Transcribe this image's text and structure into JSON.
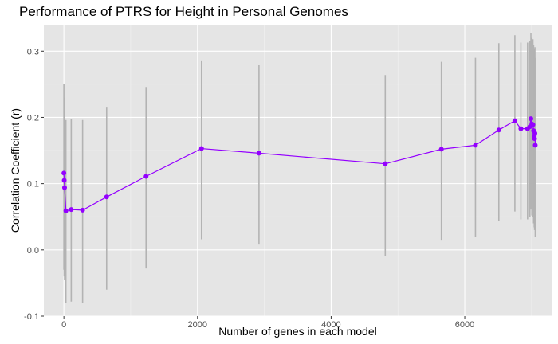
{
  "chart_data": {
    "type": "line",
    "title": "Performance of PTRS for Height in Personal Genomes",
    "xlabel": "Number of genes in each model",
    "ylabel": "Correlation Coefficient (r)",
    "xlim": [
      -300,
      7300
    ],
    "ylim": [
      -0.1,
      0.34
    ],
    "x_ticks": [
      0,
      2000,
      4000,
      6000
    ],
    "y_ticks": [
      -0.1,
      0.0,
      0.1,
      0.2,
      0.3
    ],
    "x_tick_labels": [
      "0",
      "2000",
      "4000",
      "6000"
    ],
    "y_tick_labels": [
      "-0.1",
      "0.0",
      "0.1",
      "0.2",
      "0.3"
    ],
    "grid": true,
    "background": "#e5e5e5",
    "line_color": "#9400ff",
    "point_color": "#9400ff",
    "errorbar_color": "#b3b3b3",
    "series": [
      {
        "points": [
          {
            "x": 0,
            "y": 0.116,
            "lo": -0.03,
            "hi": 0.25
          },
          {
            "x": 5,
            "y": 0.105,
            "lo": -0.04,
            "hi": 0.23
          },
          {
            "x": 10,
            "y": 0.094,
            "lo": -0.045,
            "hi": 0.21
          },
          {
            "x": 30,
            "y": 0.059,
            "lo": -0.08,
            "hi": 0.196
          },
          {
            "x": 110,
            "y": 0.061,
            "lo": -0.078,
            "hi": 0.198
          },
          {
            "x": 280,
            "y": 0.06,
            "lo": -0.08,
            "hi": 0.196
          },
          {
            "x": 640,
            "y": 0.08,
            "lo": -0.06,
            "hi": 0.216
          },
          {
            "x": 1230,
            "y": 0.111,
            "lo": -0.028,
            "hi": 0.246
          },
          {
            "x": 2060,
            "y": 0.153,
            "lo": 0.016,
            "hi": 0.286
          },
          {
            "x": 2920,
            "y": 0.146,
            "lo": 0.008,
            "hi": 0.279
          },
          {
            "x": 4810,
            "y": 0.13,
            "lo": -0.009,
            "hi": 0.264
          },
          {
            "x": 5650,
            "y": 0.152,
            "lo": 0.014,
            "hi": 0.284
          },
          {
            "x": 6160,
            "y": 0.158,
            "lo": 0.02,
            "hi": 0.29
          },
          {
            "x": 6510,
            "y": 0.181,
            "lo": 0.044,
            "hi": 0.312
          },
          {
            "x": 6750,
            "y": 0.195,
            "lo": 0.058,
            "hi": 0.324
          },
          {
            "x": 6840,
            "y": 0.183,
            "lo": 0.046,
            "hi": 0.313
          },
          {
            "x": 6940,
            "y": 0.183,
            "lo": 0.046,
            "hi": 0.313
          },
          {
            "x": 6975,
            "y": 0.186,
            "lo": 0.049,
            "hi": 0.316
          },
          {
            "x": 6990,
            "y": 0.198,
            "lo": 0.061,
            "hi": 0.327
          },
          {
            "x": 7005,
            "y": 0.19,
            "lo": 0.052,
            "hi": 0.32
          },
          {
            "x": 7020,
            "y": 0.189,
            "lo": 0.05,
            "hi": 0.318
          },
          {
            "x": 7030,
            "y": 0.18,
            "lo": 0.04,
            "hi": 0.31
          },
          {
            "x": 7040,
            "y": 0.172,
            "lo": 0.034,
            "hi": 0.304
          },
          {
            "x": 7045,
            "y": 0.168,
            "lo": 0.03,
            "hi": 0.3
          },
          {
            "x": 7050,
            "y": 0.176,
            "lo": 0.036,
            "hi": 0.306
          },
          {
            "x": 7055,
            "y": 0.158,
            "lo": 0.02,
            "hi": 0.29
          }
        ]
      }
    ]
  }
}
